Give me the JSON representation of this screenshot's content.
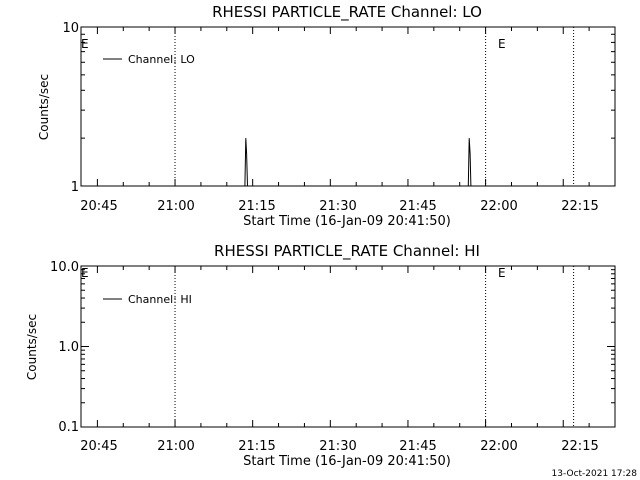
{
  "colors": {
    "background": "#ffffff",
    "foreground": "#000000"
  },
  "footer": {
    "timestamp": "13-Oct-2021 17:28"
  },
  "chart_data": [
    {
      "type": "line",
      "title": "RHESSI PARTICLE_RATE Channel: LO",
      "xlabel": "Start Time (16-Jan-09 20:41:50)",
      "ylabel": "Counts/sec",
      "yscale": "log",
      "xlim": [
        "20:41:50",
        "22:25:00"
      ],
      "ylim": [
        1,
        10
      ],
      "x_ticks": [
        "20:45",
        "21:00",
        "21:15",
        "21:30",
        "21:45",
        "22:00",
        "22:15"
      ],
      "y_ticks": [
        "1",
        "10"
      ],
      "legend": {
        "position": "top-left",
        "entries": [
          "Channel: LO"
        ]
      },
      "series": [
        {
          "name": "Channel: LO",
          "points": [
            [
              "21:13:30",
              1
            ],
            [
              "21:13:40",
              2
            ],
            [
              "21:13:50",
              1.6
            ],
            [
              "21:14:00",
              1
            ],
            [
              "21:56:40",
              1
            ],
            [
              "21:56:50",
              2
            ],
            [
              "21:57:00",
              1.6
            ],
            [
              "21:57:10",
              1
            ]
          ]
        }
      ],
      "vlines": [
        "21:00",
        "22:00",
        "22:17"
      ],
      "markers": [
        {
          "text": "E",
          "x": "20:41:50"
        },
        {
          "text": "E",
          "x": "22:00"
        }
      ]
    },
    {
      "type": "line",
      "title": "RHESSI PARTICLE_RATE Channel: HI",
      "xlabel": "Start Time (16-Jan-09 20:41:50)",
      "ylabel": "Counts/sec",
      "yscale": "log",
      "xlim": [
        "20:41:50",
        "22:25:00"
      ],
      "ylim": [
        0.1,
        10
      ],
      "x_ticks": [
        "20:45",
        "21:00",
        "21:15",
        "21:30",
        "21:45",
        "22:00",
        "22:15"
      ],
      "y_ticks": [
        "0.1",
        "1.0",
        "10.0"
      ],
      "legend": {
        "position": "top-left",
        "entries": [
          "Channel: HI"
        ]
      },
      "series": [
        {
          "name": "Channel: HI",
          "points": []
        }
      ],
      "vlines": [
        "21:00",
        "22:00",
        "22:17"
      ],
      "markers": [
        {
          "text": "E",
          "x": "20:41:50"
        },
        {
          "text": "E",
          "x": "22:00"
        }
      ]
    }
  ]
}
